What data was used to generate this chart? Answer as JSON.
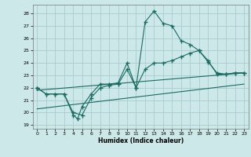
{
  "xlabel": "Humidex (Indice chaleur)",
  "xlim": [
    -0.5,
    23.5
  ],
  "ylim": [
    18.7,
    28.7
  ],
  "yticks": [
    19,
    20,
    21,
    22,
    23,
    24,
    25,
    26,
    27,
    28
  ],
  "xticks": [
    0,
    1,
    2,
    3,
    4,
    5,
    6,
    7,
    8,
    9,
    10,
    11,
    12,
    13,
    14,
    15,
    16,
    17,
    18,
    19,
    20,
    21,
    22,
    23
  ],
  "bg": "#cce8e8",
  "grid_color": "#aacccc",
  "lc": "#1a6b62",
  "curve1_x": [
    0,
    1,
    2,
    3,
    4,
    4.5,
    5,
    6,
    7,
    8,
    9,
    10,
    11,
    12,
    13,
    14,
    15,
    16,
    17,
    18,
    19,
    20,
    21,
    22,
    23
  ],
  "curve1_y": [
    22.0,
    21.5,
    21.5,
    21.5,
    19.8,
    19.5,
    20.5,
    21.5,
    22.3,
    22.3,
    22.4,
    24.0,
    22.0,
    27.3,
    28.2,
    27.2,
    27.0,
    25.8,
    25.5,
    25.0,
    24.1,
    23.2,
    23.1,
    23.2,
    23.2
  ],
  "curve2_x": [
    0,
    1,
    2,
    3,
    4,
    5,
    6,
    7,
    8,
    9,
    10,
    11,
    12,
    13,
    14,
    15,
    16,
    17,
    18,
    19,
    20,
    21,
    22,
    23
  ],
  "curve2_y": [
    22.0,
    21.5,
    21.5,
    21.5,
    20.0,
    19.8,
    21.2,
    22.0,
    22.2,
    22.3,
    23.5,
    22.0,
    23.5,
    24.0,
    24.0,
    24.2,
    24.5,
    24.8,
    25.0,
    24.2,
    23.1,
    23.1,
    23.2,
    23.2
  ],
  "line3_x": [
    0,
    23
  ],
  "line3_y": [
    21.8,
    23.2
  ],
  "line4_x": [
    0,
    23
  ],
  "line4_y": [
    20.3,
    22.3
  ]
}
